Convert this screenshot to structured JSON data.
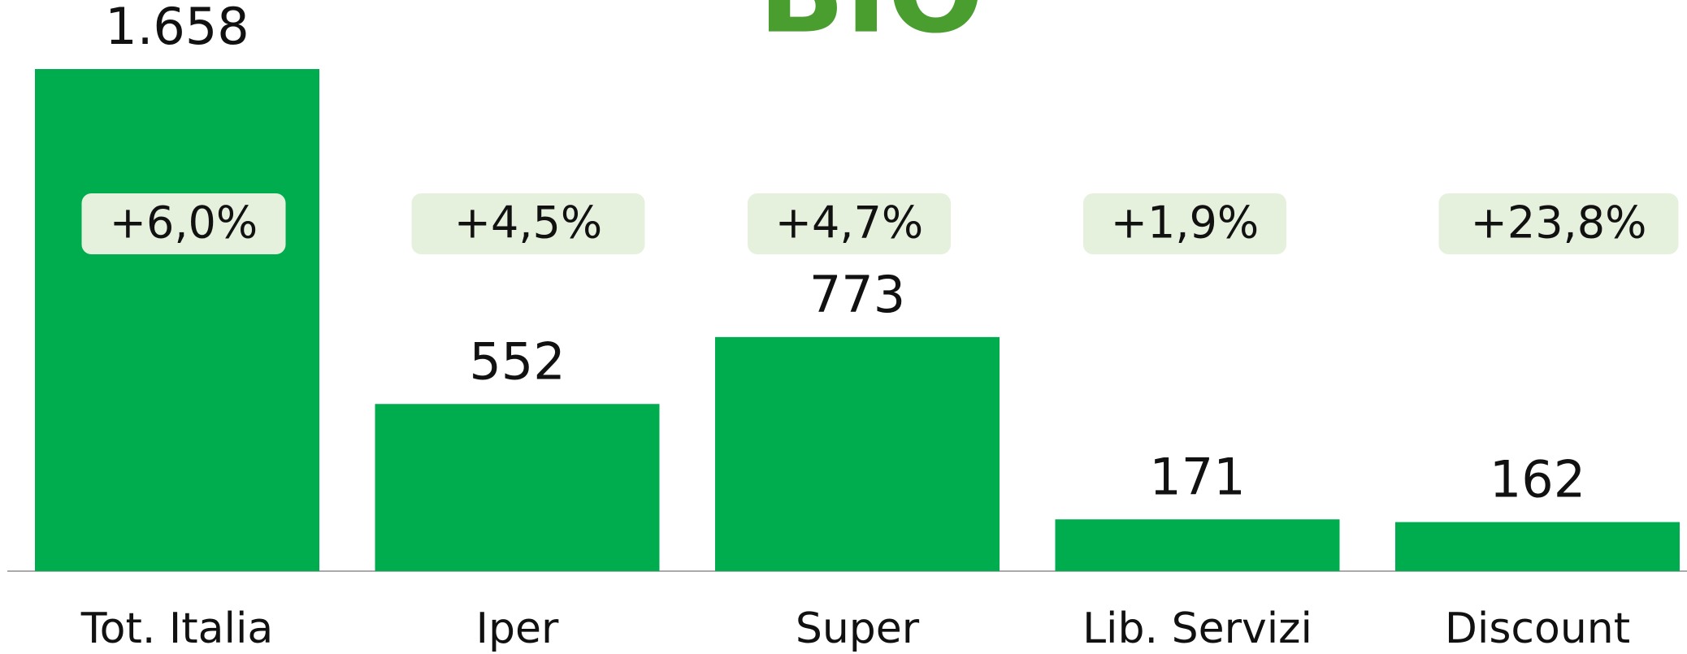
{
  "chart_data": {
    "type": "bar",
    "logo": "BIO",
    "categories": [
      "Tot. Italia",
      "Iper",
      "Super",
      "Lib. Servizi",
      "Discount"
    ],
    "values": [
      1658,
      552,
      773,
      171,
      162
    ],
    "value_labels": [
      "1.658",
      "552",
      "773",
      "171",
      "162"
    ],
    "growth_labels": [
      "+6,0%",
      "+4,5%",
      "+4,7%",
      "+1,9%",
      "+23,8%"
    ],
    "color": "#00ad4e"
  }
}
